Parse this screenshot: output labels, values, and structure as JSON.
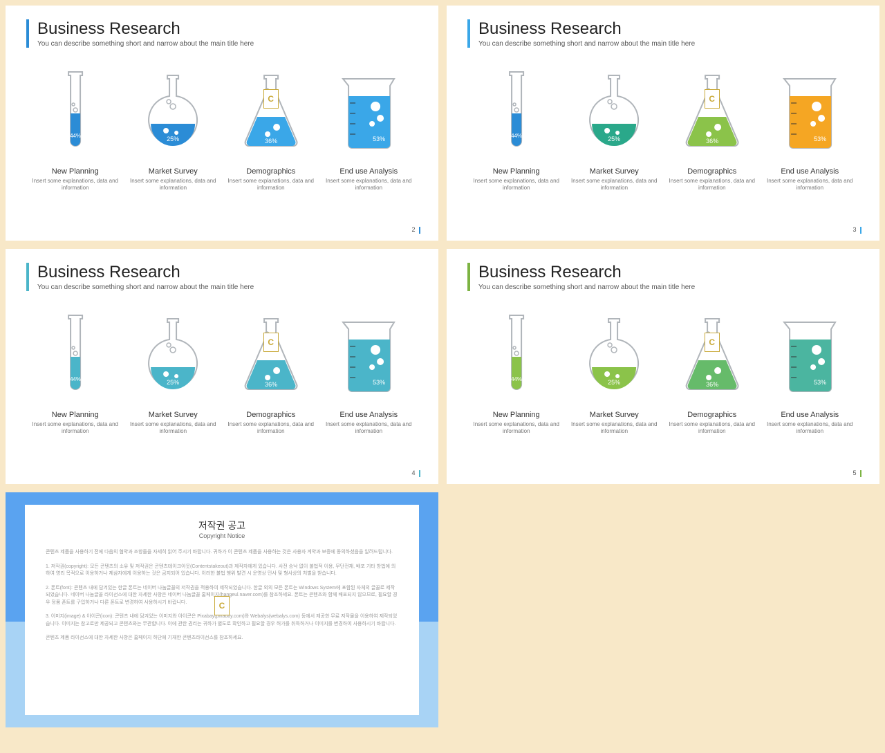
{
  "common": {
    "title": "Business Research",
    "subtitle": "You can describe something short and narrow about the main title here",
    "desc": "Insert some explanations, data and information",
    "logo_letter": "C"
  },
  "vessels": [
    {
      "label": "New Planning",
      "pct": "44%"
    },
    {
      "label": "Market Survey",
      "pct": "25%"
    },
    {
      "label": "Demographics",
      "pct": "36%"
    },
    {
      "label": "End use Analysis",
      "pct": "53%"
    }
  ],
  "slides": [
    {
      "accent": "#2b8cd6",
      "page": "2",
      "fills": [
        "#2b8cd6",
        "#2b8cd6",
        "#3aa7e8",
        "#3aa7e8"
      ]
    },
    {
      "accent": "#3aa7e8",
      "page": "3",
      "fills": [
        "#2b8cd6",
        "#2aa88a",
        "#8bc34a",
        "#f5a623"
      ]
    },
    {
      "accent": "#4bb5c9",
      "page": "4",
      "fills": [
        "#4bb5c9",
        "#4bb5c9",
        "#4bb5c9",
        "#4bb5c9"
      ]
    },
    {
      "accent": "#7cb342",
      "page": "5",
      "fills": [
        "#8bc34a",
        "#8bc34a",
        "#66bb6a",
        "#4bb5a0"
      ]
    }
  ],
  "copyright": {
    "title": "저작권 공고",
    "subtitle": "Copyright Notice",
    "p1": "콘텐츠 제품을 사용하기 전에 다음의 협약과 조항들을 자세히 읽어 주시기 바랍니다. 귀하가 이 콘텐츠 제품을 사용하는 것은 사용자 계약과 보증에 동의하셨음을 알려드립니다.",
    "p2": "1. 저작권(copyright): 모든 콘텐츠의 소유 및 저작권은 콘텐츠테이크아웃(Contentstakeout)과 제작자에게 있습니다. 사전 승낙 없이 불법적 이용, 무단전재, 배포 기타 방법에 의하여 영리 목적으로 이용하거나 제삼자에게 이용하는 것은 금지되어 있습니다. 이러한 불법 행위 발견 시 운영상 민사 및 형사상의 처벌을 받습니다.",
    "p3": "2. 폰트(font): 콘텐츠 내에 담겨있는 한글 폰트는 네이버 나눔글꼴의 저작권을 적용하여 제작되었습니다. 한글 외의 모든 폰트는 Windows System에 포함된 자체의 글꼴로 제작되었습니다. 네이버 나눔글꼴 라이선스에 대한 자세한 사항은 네이버 나눔글꼴 홈페이지(hangeul.naver.com)를 참조하세요. 폰트는 콘텐츠와 함께 배포되지 않으므로, 필요할 경우 정품 폰트를 구입하거나 다른 폰트로 변경하여 사용하시기 바랍니다.",
    "p4": "3. 이미지(image) & 아이콘(icon): 콘텐츠 내에 담겨있는 이미지와 아이콘은 Pixabay(pixabay.com)와 Webalys(webalys.com) 등에서 제공한 무료 저작물을 이용하여 제작되었습니다. 이미지는 참고로만 제공되고 콘텐츠와는 무관합니다. 이에 관한 권리는 귀하가 별도로 확인하고 필요할 경우 허가를 취득하거나 이미지를 변경하여 사용하시기 바랍니다.",
    "p5": "콘텐츠 제품 라이선스에 대한 자세한 사항은 홈페이지 하단에 기재한 콘텐츠라이선스를 참조하세요."
  },
  "styling": {
    "outline": "#b0b5ba",
    "bubble": "#ffffff",
    "text_pct": "#ffffff",
    "bg": "#f8e8c8"
  }
}
